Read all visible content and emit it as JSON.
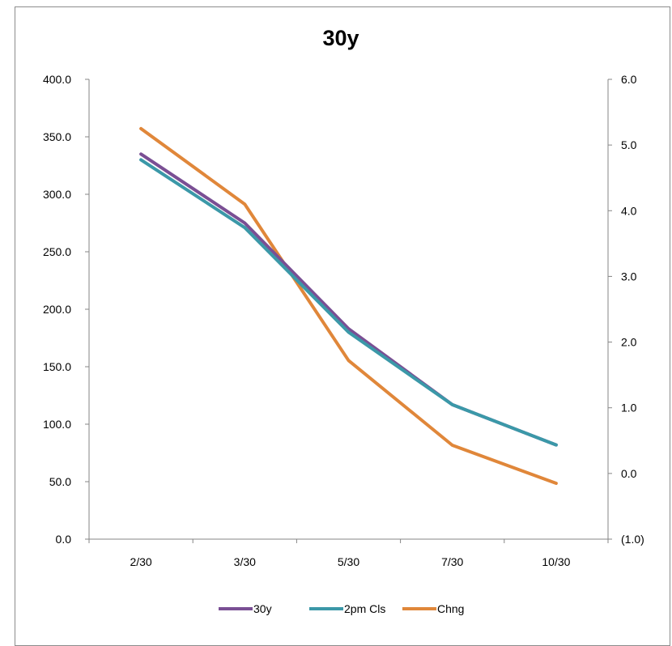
{
  "chart_data": {
    "type": "line",
    "title": "30y",
    "categories": [
      "2/30",
      "3/30",
      "5/30",
      "7/30",
      "10/30"
    ],
    "series": [
      {
        "name": "30y",
        "axis": "left",
        "color": "#7a4f94",
        "values": [
          335.0,
          275.0,
          183.0,
          117.0,
          82.0
        ]
      },
      {
        "name": "2pm Cls",
        "axis": "left",
        "color": "#3b98a8",
        "values": [
          330.0,
          271.0,
          180.0,
          117.0,
          82.0
        ]
      },
      {
        "name": "Chng",
        "axis": "right",
        "color": "#e0873a",
        "values": [
          5.25,
          4.1,
          1.72,
          0.43,
          -0.15
        ]
      }
    ],
    "y_left": {
      "min": 0,
      "max": 400,
      "ticks": [
        "0.0",
        "50.0",
        "100.0",
        "150.0",
        "200.0",
        "250.0",
        "300.0",
        "350.0",
        "400.0"
      ]
    },
    "y_right": {
      "min": -1,
      "max": 6,
      "ticks": [
        "(1.0)",
        "0.0",
        "1.0",
        "2.0",
        "3.0",
        "4.0",
        "5.0",
        "6.0"
      ],
      "negative_color": "#ff0000"
    },
    "grid": false,
    "legend": "bottom"
  }
}
